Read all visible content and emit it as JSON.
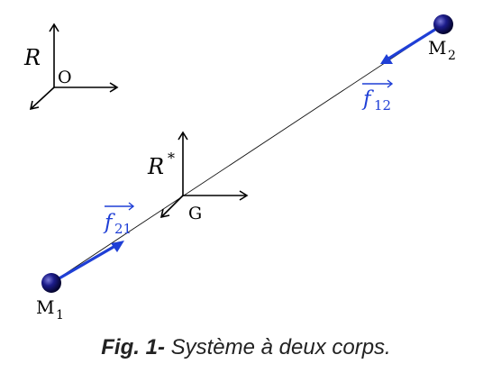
{
  "colors": {
    "force": "#1f3fd6",
    "mass": "#14146b",
    "line": "#111111",
    "axes": "#000000"
  },
  "labels": {
    "frame_R": "R",
    "frame_O": "O",
    "frame_Rstar": "R",
    "star": "*",
    "origin_G": "G",
    "M1": "M",
    "M1_sub": "1",
    "M2": "M",
    "M2_sub": "2",
    "f12": "f",
    "f12_sub": "12",
    "f21": "f",
    "f21_sub": "21"
  },
  "caption": {
    "prefix": "Fig. 1-",
    "text": " Système à deux corps."
  }
}
